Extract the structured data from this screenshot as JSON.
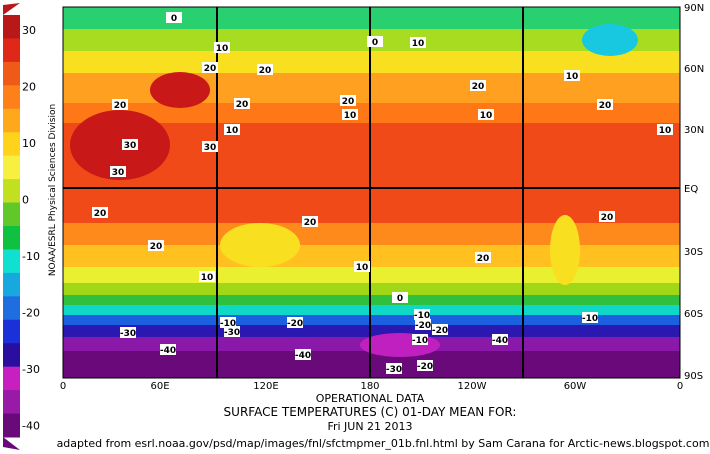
{
  "colorbar": {
    "labels": [
      "30",
      "20",
      "10",
      "0",
      "-10",
      "-20",
      "-30",
      "-40"
    ]
  },
  "side_label": "NOAA/ESRL Physical Sciences Division",
  "lat_labels": [
    "90N",
    "60N",
    "30N",
    "EQ",
    "30S",
    "60S",
    "90S"
  ],
  "lon_labels": [
    "0",
    "60E",
    "120E",
    "180",
    "120W",
    "60W",
    "0"
  ],
  "contour_labels": [
    "0",
    "10",
    "20",
    "20",
    "20",
    "20",
    "10",
    "30",
    "30",
    "30",
    "20",
    "20",
    "20",
    "10",
    "20",
    "10",
    "20",
    "10",
    "10",
    "0",
    "10",
    "-10",
    "-20",
    "-40",
    "-10",
    "-30",
    "-20",
    "-40",
    "-30",
    "-20",
    "-10",
    "-20",
    "-30",
    "-40",
    "0",
    "10",
    "20",
    "20",
    "20",
    "10",
    "-10"
  ],
  "title_lines": [
    "OPERATIONAL DATA",
    "SURFACE TEMPERATURES (C)   01-DAY MEAN FOR:",
    "Fri JUN 21 2013"
  ],
  "credit": "adapted from esrl.noaa.gov/psd/map/images/fnl/sfctmpmer_01b.fnl.html by Sam Carana for Arctic-news.blogspot.com"
}
